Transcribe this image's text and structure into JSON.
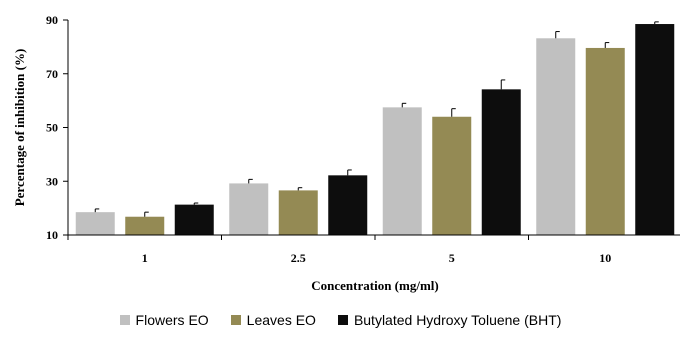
{
  "chart_data": {
    "type": "bar",
    "title": "",
    "xlabel": "Concentration (mg/ml)",
    "ylabel": "Percentage of inhibition (%)",
    "categories": [
      "1",
      "2.5",
      "5",
      "10"
    ],
    "ylim": [
      10,
      90
    ],
    "yticks": [
      10,
      30,
      50,
      70,
      90
    ],
    "grid": false,
    "legend_position": "bottom",
    "series": [
      {
        "name": "Flowers EO",
        "color": "#c0c0c0",
        "values": [
          18.5,
          29.2,
          57.5,
          83.2
        ],
        "errors": [
          1.2,
          1.5,
          1.5,
          2.5
        ]
      },
      {
        "name": "Leaves EO",
        "color": "#948a54",
        "values": [
          16.8,
          26.6,
          54.0,
          79.6
        ],
        "errors": [
          1.7,
          1.0,
          3.0,
          2.0
        ]
      },
      {
        "name": "Butylated Hydroxy Toluene (BHT)",
        "color": "#0d0d0d",
        "values": [
          21.3,
          32.2,
          64.2,
          88.5
        ],
        "errors": [
          0.6,
          2.0,
          3.5,
          0.8
        ]
      }
    ]
  }
}
